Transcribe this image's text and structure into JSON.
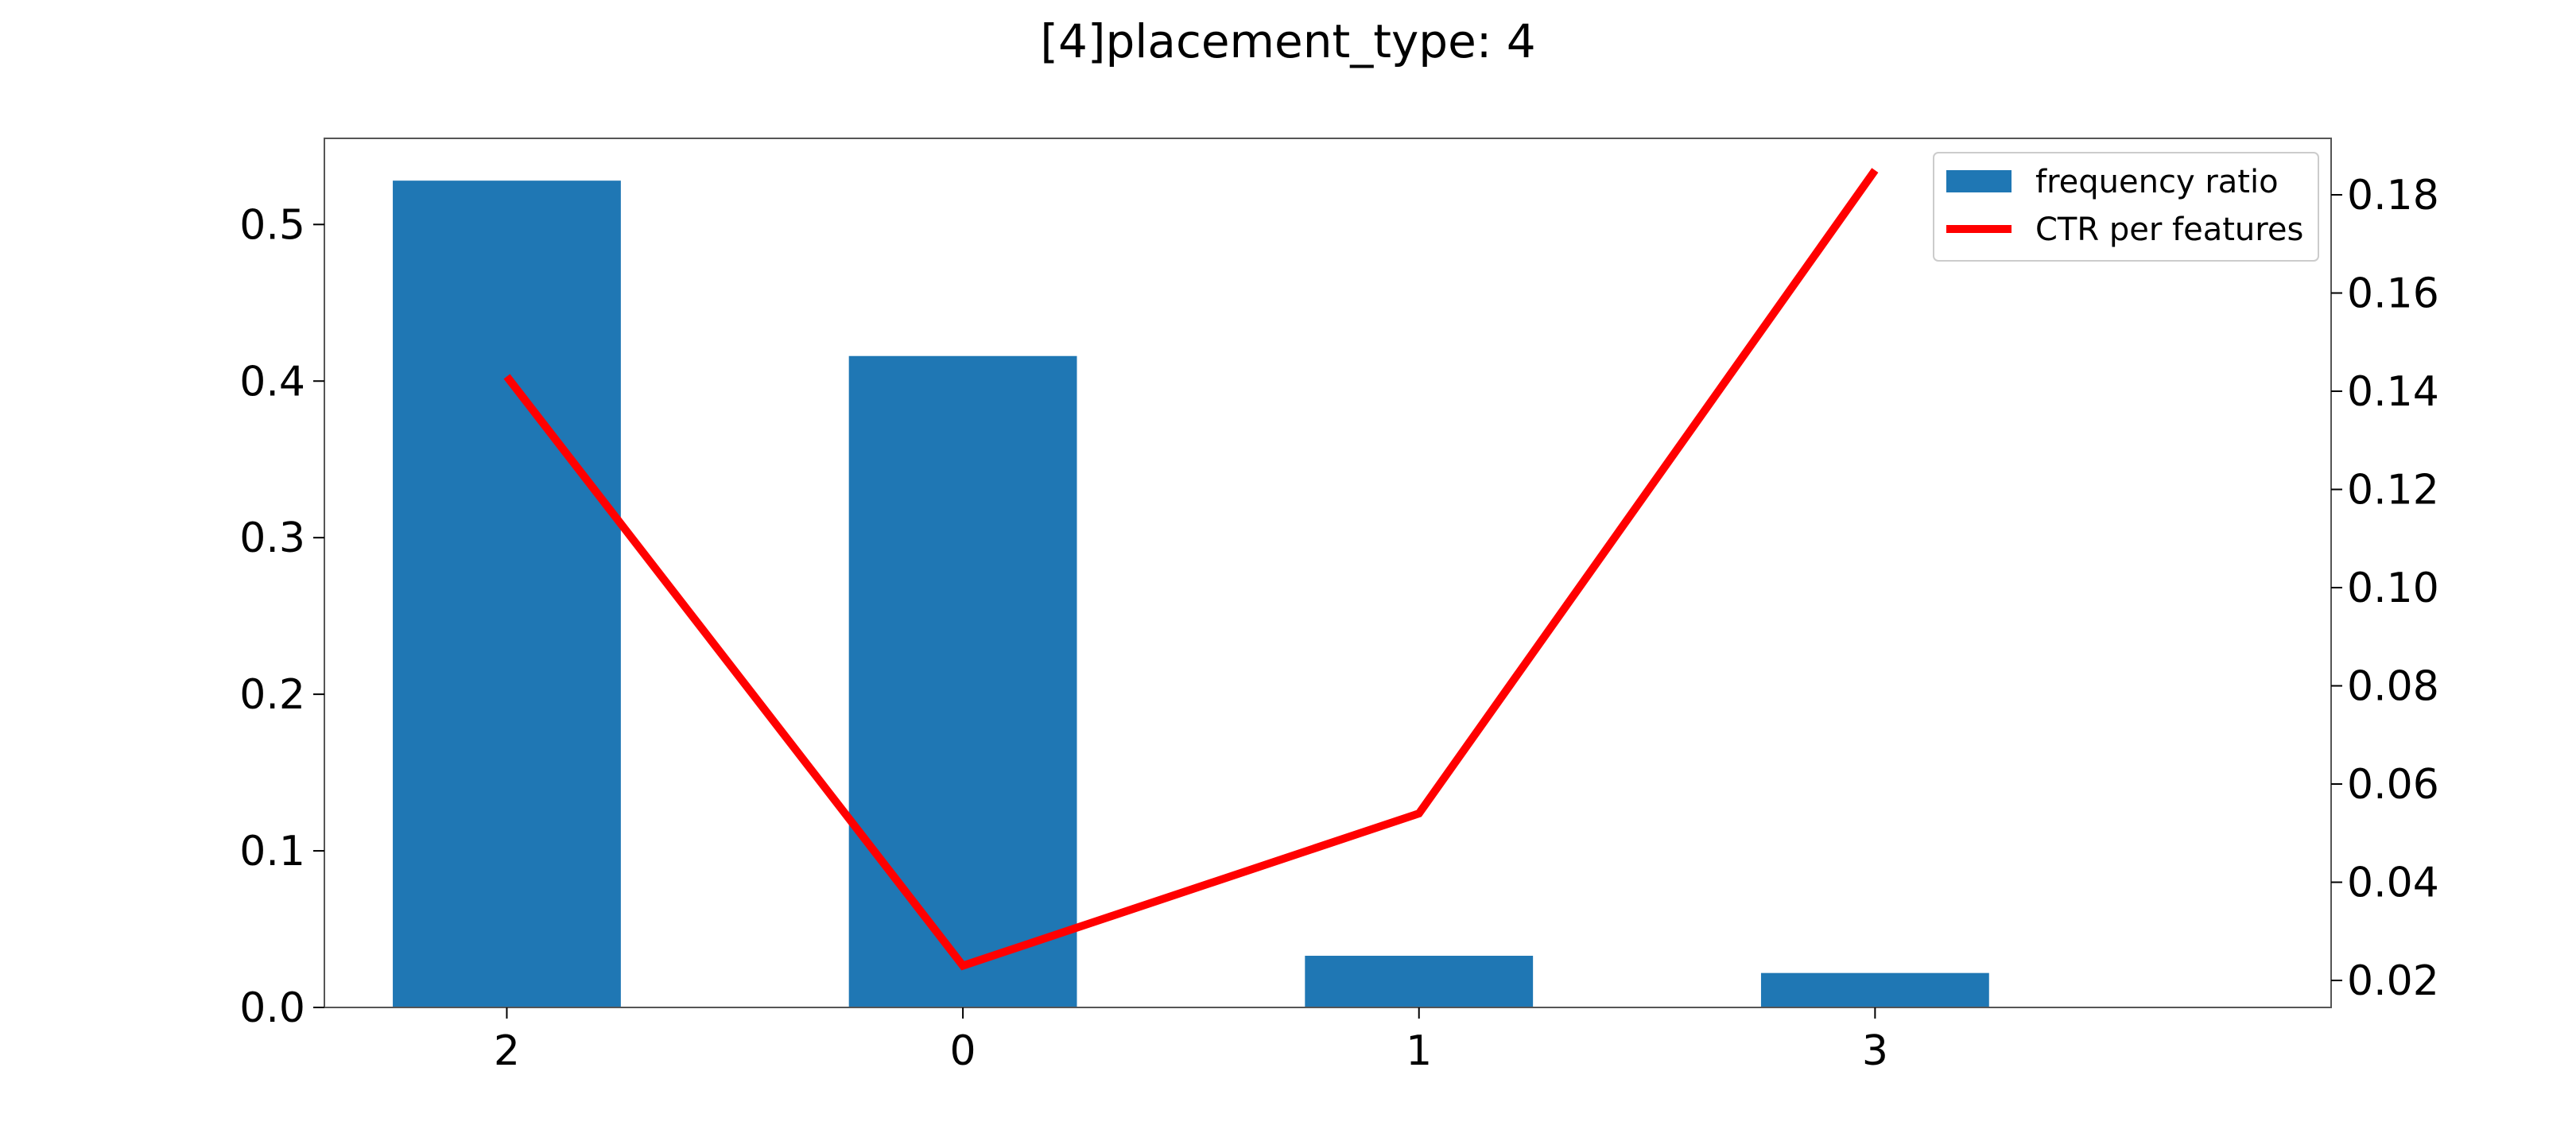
{
  "chart_data": {
    "type": "bar",
    "title": "[4]placement_type: 4",
    "xlabel": "",
    "ylabel": "",
    "categories": [
      "2",
      "0",
      "1",
      "3"
    ],
    "series": [
      {
        "name": "frequency ratio",
        "kind": "bar",
        "axis": "left",
        "color": "#1f77b4",
        "values": [
          0.528,
          0.416,
          0.033,
          0.022
        ]
      },
      {
        "name": "CTR per features",
        "kind": "line",
        "axis": "right",
        "color": "#ff0000",
        "values": [
          0.143,
          0.023,
          0.054,
          0.185
        ]
      }
    ],
    "ylim_left": [
      0,
      0.555
    ],
    "ylim_right": [
      0.0145,
      0.1915
    ],
    "left_ticks": [
      0.0,
      0.1,
      0.2,
      0.3,
      0.4,
      0.5
    ],
    "left_tick_labels": [
      "0.0",
      "0.1",
      "0.2",
      "0.3",
      "0.4",
      "0.5"
    ],
    "right_ticks": [
      0.02,
      0.04,
      0.06,
      0.08,
      0.1,
      0.12,
      0.14,
      0.16,
      0.18
    ],
    "right_tick_labels": [
      "0.02",
      "0.04",
      "0.06",
      "0.08",
      "0.10",
      "0.12",
      "0.14",
      "0.16",
      "0.18"
    ],
    "grid": false,
    "legend_position": "top-right"
  }
}
